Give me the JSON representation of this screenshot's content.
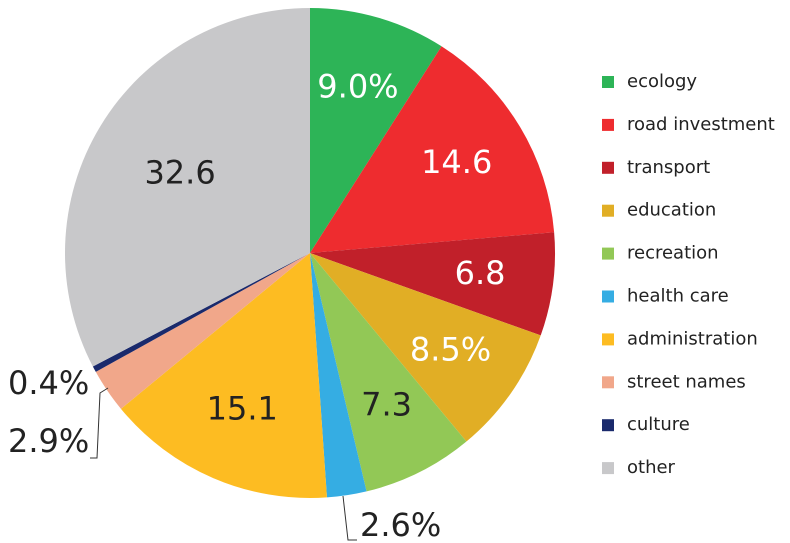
{
  "chart_data": {
    "type": "pie",
    "categories": [
      "ecology",
      "road investment",
      "transport",
      "education",
      "recreation",
      "health care",
      "administration",
      "street names",
      "culture",
      "other"
    ],
    "values": [
      9.0,
      14.6,
      6.8,
      8.5,
      7.3,
      2.6,
      15.1,
      2.9,
      0.4,
      32.6
    ],
    "value_labels": [
      "9.0%",
      "14.6",
      "6.8",
      "8.5%",
      "7.3",
      "2.6%",
      "15.1",
      "2.9%",
      "0.4%",
      "32.6"
    ],
    "colors": [
      "#2db457",
      "#ee2c2f",
      "#c1202a",
      "#e1ae25",
      "#92c856",
      "#35ade3",
      "#fdbc22",
      "#f1a78a",
      "#1a2a6c",
      "#c8c8ca"
    ],
    "legend": "right"
  }
}
